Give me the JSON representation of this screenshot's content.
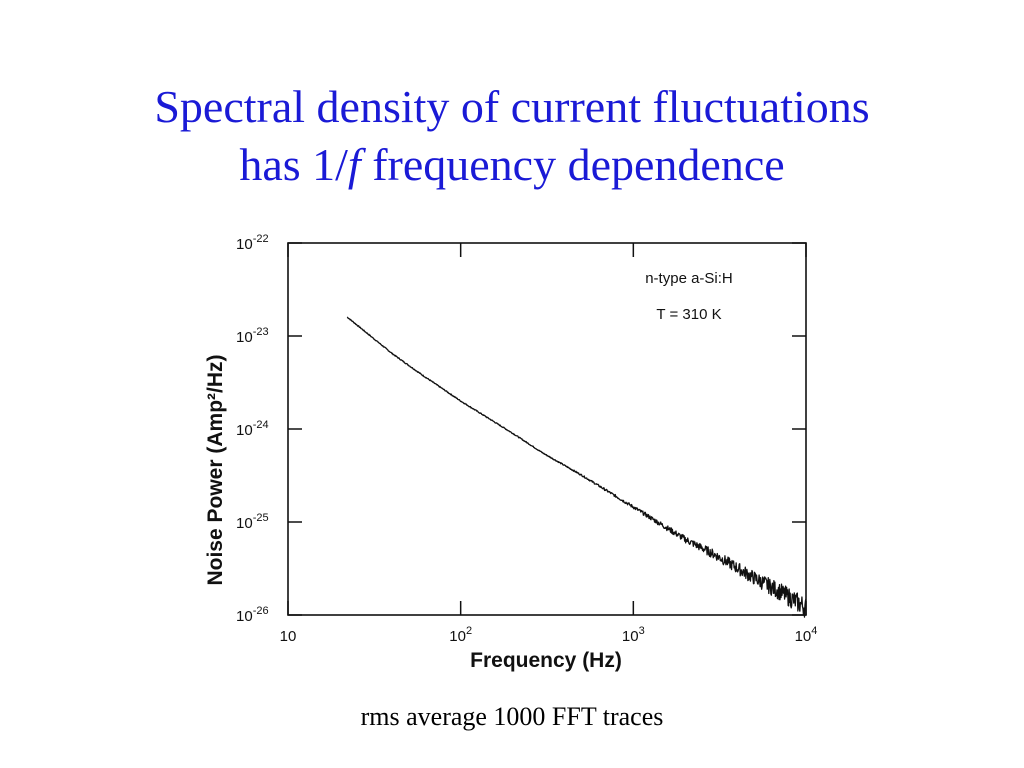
{
  "title": {
    "line1": "Spectral density of current fluctuations",
    "line2_prefix": "has 1/",
    "line2_italic": "f",
    "line2_suffix": " frequency dependence"
  },
  "caption": "rms average 1000 FFT traces",
  "chart_data": {
    "type": "line",
    "xlabel": "Frequency (Hz)",
    "ylabel": "Noise Power (Amp²/Hz)",
    "x_scale": "log",
    "y_scale": "log",
    "xlim": [
      10,
      10000
    ],
    "ylim": [
      1e-26,
      1e-22
    ],
    "x_ticks": [
      {
        "value": 10,
        "base": "10",
        "exp": ""
      },
      {
        "value": 100,
        "base": "10",
        "exp": "2"
      },
      {
        "value": 1000,
        "base": "10",
        "exp": "3"
      },
      {
        "value": 10000,
        "base": "10",
        "exp": "4"
      }
    ],
    "y_ticks": [
      {
        "value": 1e-22,
        "base": "10",
        "exp": "-22"
      },
      {
        "value": 1e-23,
        "base": "10",
        "exp": "-23"
      },
      {
        "value": 1e-24,
        "base": "10",
        "exp": "-24"
      },
      {
        "value": 1e-25,
        "base": "10",
        "exp": "-25"
      },
      {
        "value": 1e-26,
        "base": "10",
        "exp": "-26"
      }
    ],
    "annotations": [
      "n-type  a-Si:H",
      "T = 310 K"
    ],
    "grid": false,
    "line_color": "#111111",
    "series": [
      {
        "x": [
          22,
          40,
          60,
          100,
          200,
          300,
          500,
          1000,
          2000,
          3000,
          5000,
          7000,
          10000
        ],
        "y": [
          1.6e-23,
          6.5e-24,
          3.8e-24,
          2e-24,
          9e-25,
          5.5e-25,
          3.2e-25,
          1.45e-25,
          6.5e-26,
          4.4e-26,
          2.5e-26,
          1.8e-26,
          1.2e-26
        ]
      }
    ]
  }
}
